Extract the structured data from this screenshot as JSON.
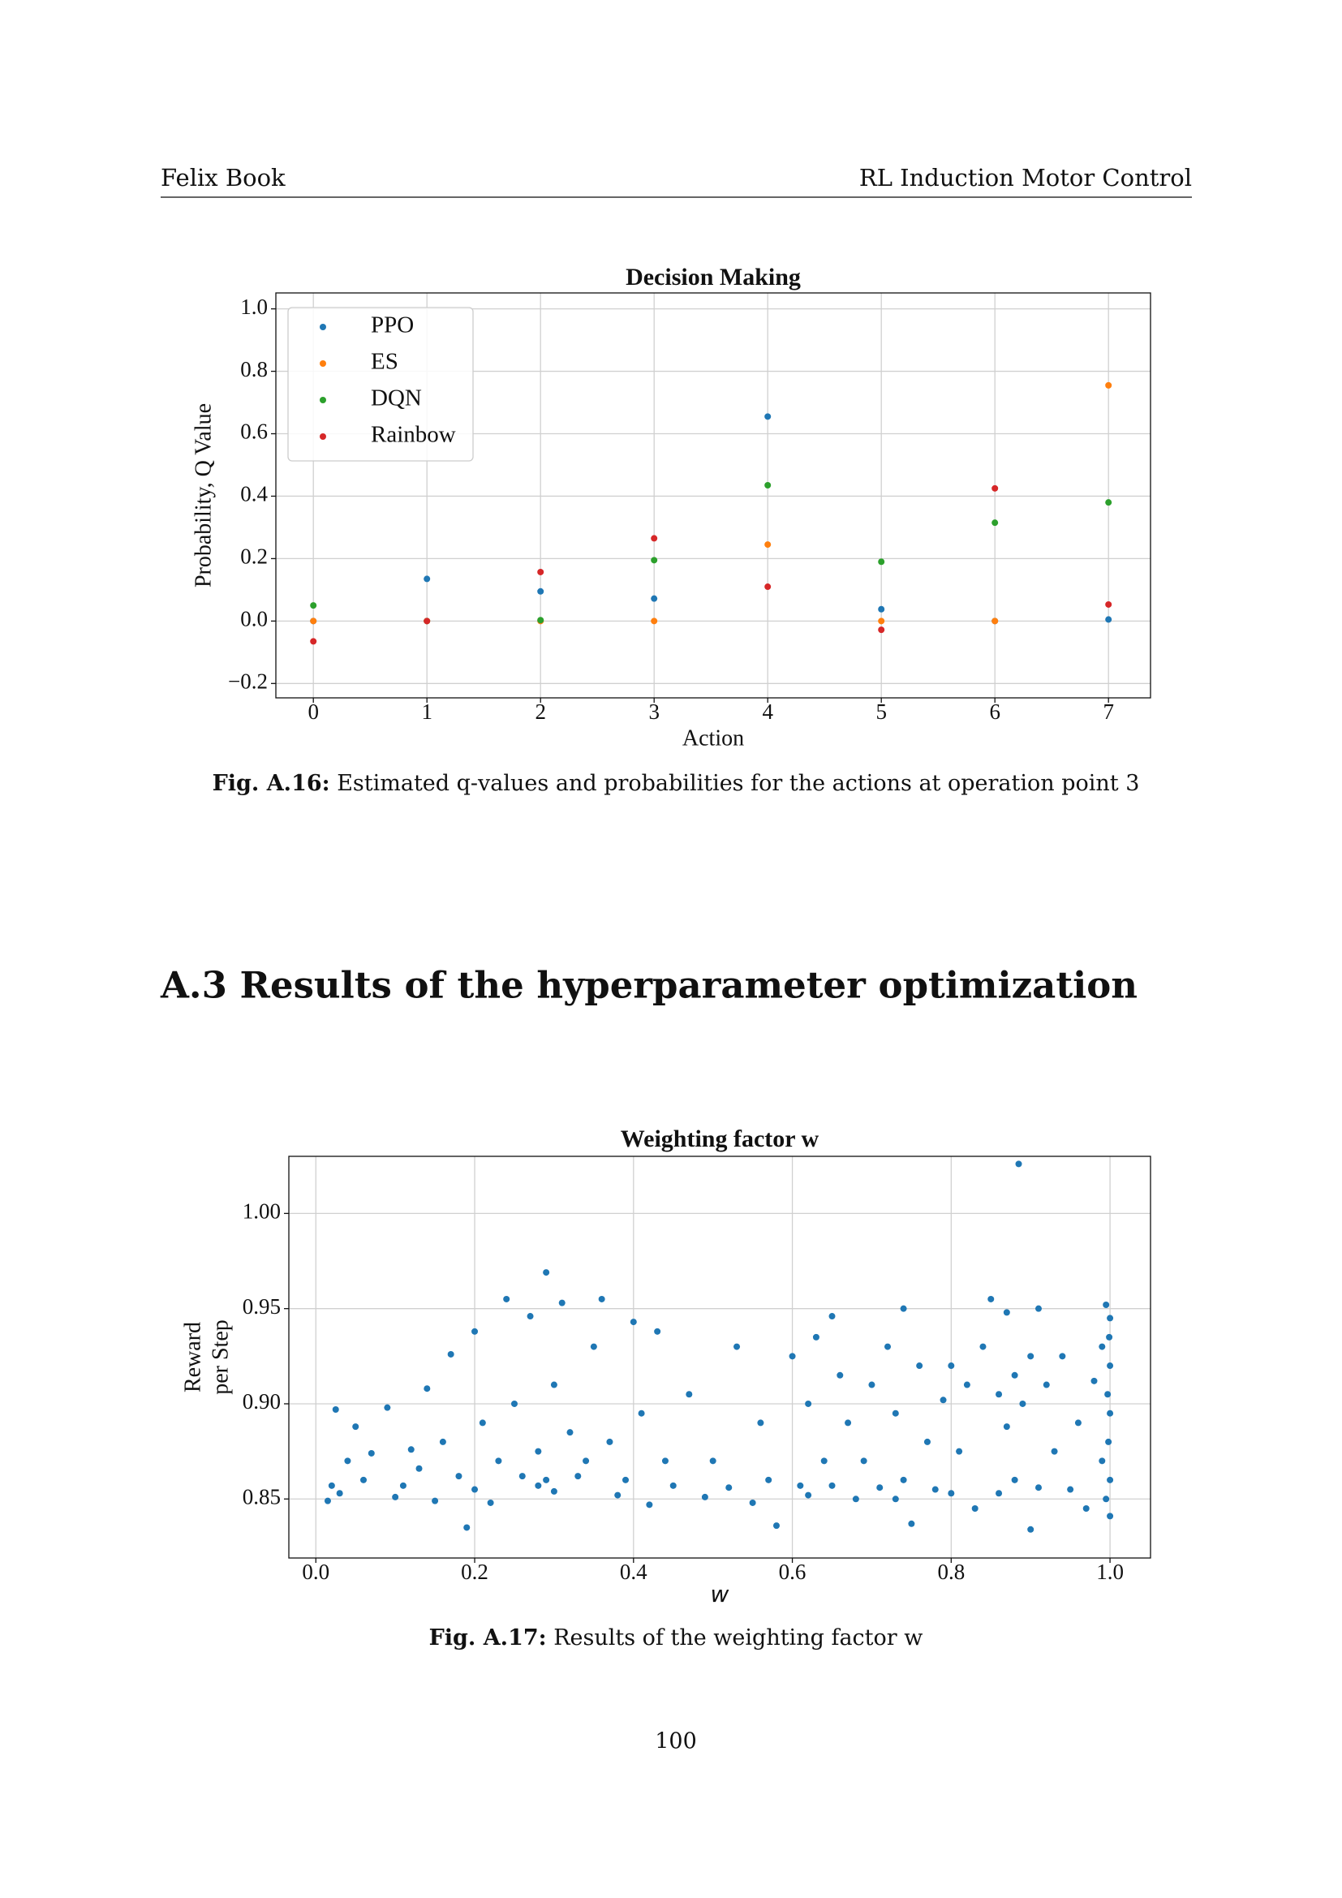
{
  "header": {
    "left": "Felix Book",
    "right": "RL Induction Motor Control"
  },
  "chart_data": [
    {
      "type": "scatter",
      "title": "Decision Making",
      "xlabel": "Action",
      "ylabel": "Probability, Q Value",
      "x": [
        0,
        1,
        2,
        3,
        4,
        5,
        6,
        7
      ],
      "series": [
        {
          "name": "PPO",
          "color": "#1f77b4",
          "values": [
            0,
            0.135,
            0.095,
            0.072,
            0.655,
            0.038,
            0,
            0.005
          ]
        },
        {
          "name": "ES",
          "color": "#ff7f0e",
          "values": [
            0,
            0,
            0,
            0,
            0.245,
            0,
            0,
            0.755
          ]
        },
        {
          "name": "DQN",
          "color": "#2ca02c",
          "values": [
            0.05,
            0,
            0.003,
            0.195,
            0.435,
            0.19,
            0.315,
            0.38
          ]
        },
        {
          "name": "Rainbow",
          "color": "#d62728",
          "values": [
            -0.065,
            0,
            0.157,
            0.265,
            0.11,
            -0.028,
            0.425,
            0.053
          ]
        }
      ],
      "xlim": [
        -0.33,
        7.37
      ],
      "ylim": [
        -0.246,
        1.051
      ],
      "xticks": [
        0,
        1,
        2,
        3,
        4,
        5,
        6,
        7
      ],
      "yticks": [
        {
          "value": -0.2,
          "label": "−0.2"
        },
        {
          "value": 0,
          "label": "0.0"
        },
        0.2,
        0.4,
        0.6,
        0.8,
        {
          "value": 1,
          "label": "1.0"
        }
      ],
      "grid": true,
      "legend": "upper left"
    },
    {
      "type": "scatter",
      "title": "Weighting factor w",
      "xlabel": "w",
      "ylabel": [
        "Reward",
        "per Step"
      ],
      "color": "#1f77b4",
      "x": [
        0.015,
        0.02,
        0.025,
        0.03,
        0.04,
        0.05,
        0.06,
        0.07,
        0.09,
        0.1,
        0.11,
        0.12,
        0.13,
        0.14,
        0.15,
        0.16,
        0.17,
        0.18,
        0.19,
        0.2,
        0.2,
        0.21,
        0.22,
        0.23,
        0.24,
        0.25,
        0.26,
        0.27,
        0.28,
        0.28,
        0.29,
        0.29,
        0.3,
        0.3,
        0.31,
        0.32,
        0.33,
        0.34,
        0.35,
        0.36,
        0.37,
        0.38,
        0.39,
        0.4,
        0.41,
        0.42,
        0.43,
        0.44,
        0.45,
        0.47,
        0.49,
        0.5,
        0.52,
        0.53,
        0.55,
        0.56,
        0.57,
        0.58,
        0.6,
        0.61,
        0.62,
        0.62,
        0.63,
        0.64,
        0.65,
        0.65,
        0.66,
        0.67,
        0.68,
        0.69,
        0.7,
        0.71,
        0.72,
        0.73,
        0.73,
        0.74,
        0.74,
        0.75,
        0.76,
        0.77,
        0.78,
        0.79,
        0.8,
        0.8,
        0.81,
        0.82,
        0.83,
        0.84,
        0.85,
        0.86,
        0.86,
        0.87,
        0.87,
        0.88,
        0.88,
        0.885,
        0.89,
        0.9,
        0.9,
        0.91,
        0.91,
        0.92,
        0.93,
        0.94,
        0.95,
        0.96,
        0.97,
        0.98,
        0.99,
        0.99,
        0.995,
        0.995,
        0.997,
        0.998,
        0.999,
        1.0,
        1.0,
        1.0,
        1.0,
        1.0
      ],
      "values": [
        0.849,
        0.857,
        0.897,
        0.853,
        0.87,
        0.888,
        0.86,
        0.874,
        0.898,
        0.851,
        0.857,
        0.876,
        0.866,
        0.908,
        0.849,
        0.88,
        0.926,
        0.862,
        0.835,
        0.938,
        0.855,
        0.89,
        0.848,
        0.87,
        0.955,
        0.9,
        0.862,
        0.946,
        0.875,
        0.857,
        0.969,
        0.86,
        0.91,
        0.854,
        0.953,
        0.885,
        0.862,
        0.87,
        0.93,
        0.955,
        0.88,
        0.852,
        0.86,
        0.943,
        0.895,
        0.847,
        0.938,
        0.87,
        0.857,
        0.905,
        0.851,
        0.87,
        0.856,
        0.93,
        0.848,
        0.89,
        0.86,
        0.836,
        0.925,
        0.857,
        0.9,
        0.852,
        0.935,
        0.87,
        0.946,
        0.857,
        0.915,
        0.89,
        0.85,
        0.87,
        0.91,
        0.856,
        0.93,
        0.85,
        0.895,
        0.95,
        0.86,
        0.837,
        0.92,
        0.88,
        0.855,
        0.902,
        0.92,
        0.853,
        0.875,
        0.91,
        0.845,
        0.93,
        0.955,
        0.905,
        0.853,
        0.948,
        0.888,
        0.915,
        0.86,
        1.026,
        0.9,
        0.834,
        0.925,
        0.95,
        0.856,
        0.91,
        0.875,
        0.925,
        0.855,
        0.89,
        0.845,
        0.912,
        0.87,
        0.93,
        0.952,
        0.85,
        0.905,
        0.88,
        0.935,
        0.92,
        0.86,
        0.895,
        0.841,
        0.945
      ],
      "xlim": [
        -0.034,
        1.051
      ],
      "ylim": [
        0.819,
        1.03
      ],
      "xticks": [
        {
          "value": 0,
          "label": "0.0"
        },
        0.2,
        0.4,
        0.6,
        0.8,
        {
          "value": 1,
          "label": "1.0"
        }
      ],
      "yticks": [
        0.85,
        {
          "value": 0.9,
          "label": "0.90"
        },
        0.95,
        {
          "value": 1,
          "label": "1.00"
        }
      ],
      "grid": true
    }
  ],
  "captions": [
    {
      "label": "Fig. A.16:",
      "text": "Estimated q-values and probabilities for the actions at operation point 3"
    },
    {
      "label": "Fig. A.17:",
      "text": "Results of the weighting factor w"
    }
  ],
  "section": "A.3 Results of the hyperparameter optimization",
  "page_number": "100"
}
